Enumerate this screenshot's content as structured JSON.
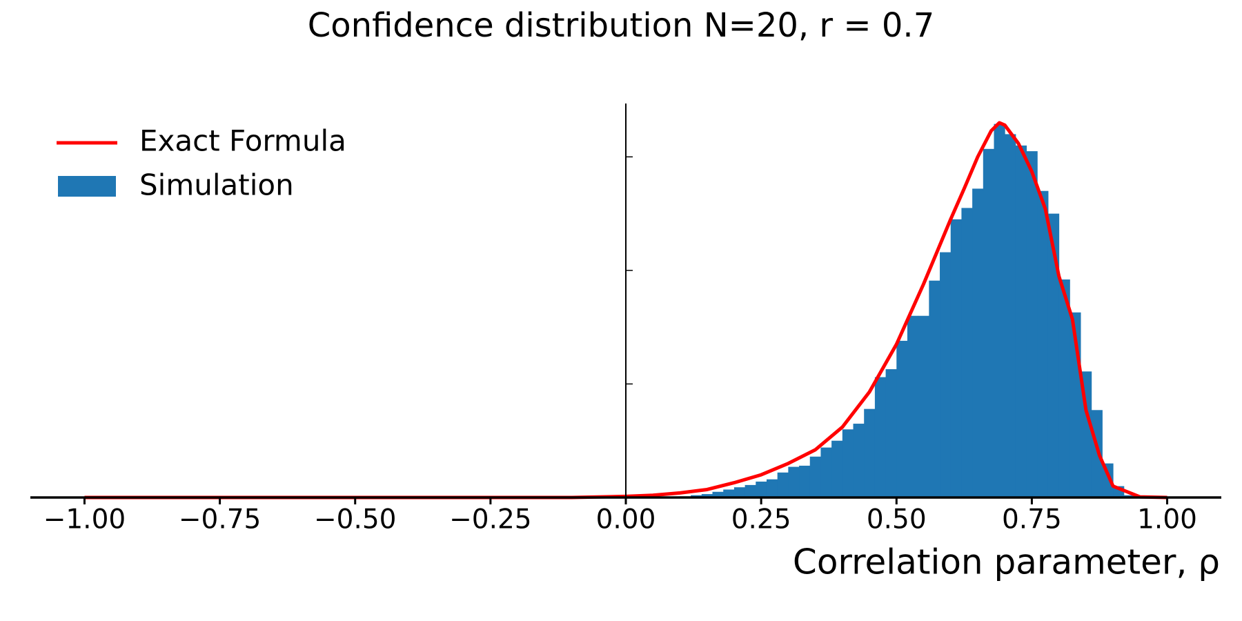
{
  "chart_data": {
    "type": "histogram",
    "title": "Confidence distribution N=20, r = 0.7",
    "xlabel": "Correlation parameter, ρ",
    "xlim": [
      -1.1,
      1.1
    ],
    "ylim": [
      0,
      3.47
    ],
    "xticks": [
      {
        "value": -1,
        "label": "−1.00"
      },
      {
        "value": -0.75,
        "label": "−0.75"
      },
      {
        "value": -0.5,
        "label": "−0.50"
      },
      {
        "value": -0.25,
        "label": "−0.25"
      },
      {
        "value": 0,
        "label": "0.00"
      },
      {
        "value": 0.25,
        "label": "0.25"
      },
      {
        "value": 0.5,
        "label": "0.50"
      },
      {
        "value": 0.75,
        "label": "0.75"
      },
      {
        "value": 1,
        "label": "1.00"
      }
    ],
    "yticks": [
      1,
      2,
      3
    ],
    "legend": "upper left",
    "histogram": {
      "name": "Simulation",
      "color": "#1f77b4",
      "bins": [
        0.1,
        0.12,
        0.14,
        0.16,
        0.18,
        0.2,
        0.22,
        0.24,
        0.26,
        0.28,
        0.3,
        0.32,
        0.34,
        0.36,
        0.38,
        0.4,
        0.42,
        0.44,
        0.46,
        0.48,
        0.5,
        0.52,
        0.54,
        0.56,
        0.58,
        0.6,
        0.62,
        0.64,
        0.66,
        0.68,
        0.7,
        0.72,
        0.74,
        0.76,
        0.78,
        0.8,
        0.82,
        0.84,
        0.86,
        0.88,
        0.9,
        0.92,
        0.94
      ],
      "values": [
        0.01,
        0.02,
        0.03,
        0.05,
        0.07,
        0.09,
        0.11,
        0.14,
        0.16,
        0.22,
        0.27,
        0.28,
        0.36,
        0.44,
        0.5,
        0.6,
        0.65,
        0.78,
        1.06,
        1.13,
        1.38,
        1.6,
        1.6,
        1.91,
        2.16,
        2.45,
        2.55,
        2.72,
        3.07,
        3.29,
        3.2,
        3.1,
        3.05,
        2.7,
        2.5,
        1.92,
        1.63,
        1.11,
        0.77,
        0.3,
        0.1,
        0.02
      ]
    },
    "line": {
      "name": "Exact Formula",
      "color": "#ff0000",
      "x": [
        -1.0,
        -0.9,
        -0.8,
        -0.7,
        -0.6,
        -0.5,
        -0.4,
        -0.3,
        -0.2,
        -0.1,
        0.0,
        0.05,
        0.1,
        0.15,
        0.2,
        0.25,
        0.3,
        0.35,
        0.4,
        0.45,
        0.5,
        0.55,
        0.6,
        0.625,
        0.65,
        0.675,
        0.69,
        0.7,
        0.725,
        0.75,
        0.775,
        0.8,
        0.825,
        0.85,
        0.875,
        0.9,
        0.95,
        1.0
      ],
      "values": [
        0,
        0,
        0,
        0,
        0,
        0,
        0,
        0,
        0,
        0,
        0.01,
        0.02,
        0.04,
        0.07,
        0.13,
        0.2,
        0.3,
        0.42,
        0.62,
        0.93,
        1.35,
        1.88,
        2.45,
        2.72,
        3.0,
        3.23,
        3.3,
        3.28,
        3.12,
        2.87,
        2.54,
        1.95,
        1.57,
        0.77,
        0.37,
        0.1,
        0.005,
        0
      ]
    }
  }
}
